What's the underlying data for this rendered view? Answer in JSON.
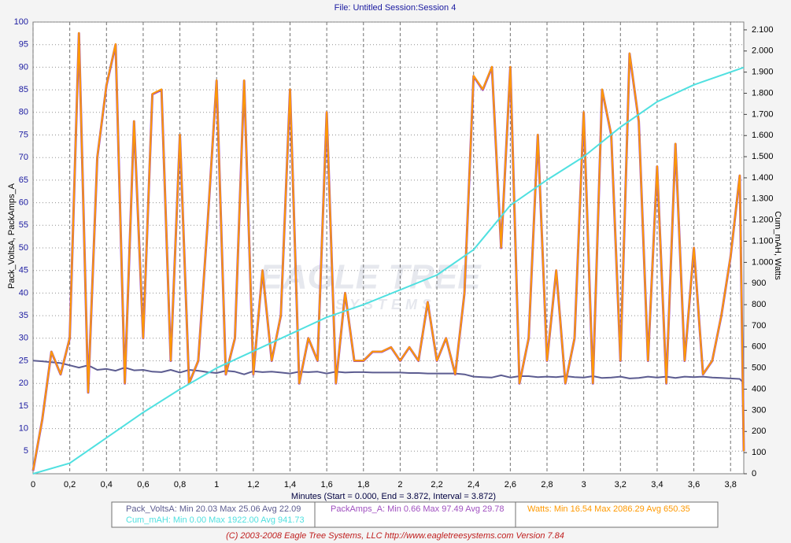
{
  "chart_data": {
    "type": "line",
    "title": "File: Untitled   Session:Session 4",
    "xlabel": "Minutes (Start = 0.000,  End = 3.872,  Interval =  3.872)",
    "ylabel": "Pack_VoltsA, PackAmps_A",
    "y2label": "Cum_mAH, Watts",
    "footer": "(C) 2003-2008 Eagle Tree Systems, LLC     http://www.eagletreesystems.com     Version 7.84",
    "watermark": [
      "EAGLE TREE",
      "SYSTEMS"
    ],
    "grid": true,
    "xlim": [
      0,
      3.872
    ],
    "ylim": [
      0,
      100
    ],
    "y2lim": [
      0,
      2137
    ],
    "xticks": [
      0,
      {
        "value": 0.2,
        "label": "0,2"
      },
      {
        "value": 0.4,
        "label": "0,4"
      },
      {
        "value": 0.6,
        "label": "0,6"
      },
      {
        "value": 0.8,
        "label": "0,8"
      },
      1,
      {
        "value": 1.2,
        "label": "1,2"
      },
      {
        "value": 1.4,
        "label": "1,4"
      },
      {
        "value": 1.6,
        "label": "1,6"
      },
      {
        "value": 1.8,
        "label": "1,8"
      },
      2,
      {
        "value": 2.2,
        "label": "2,2"
      },
      {
        "value": 2.4,
        "label": "2,4"
      },
      {
        "value": 2.6,
        "label": "2,6"
      },
      {
        "value": 2.8,
        "label": "2,8"
      },
      3,
      {
        "value": 3.2,
        "label": "3,2"
      },
      {
        "value": 3.4,
        "label": "3,4"
      },
      {
        "value": 3.6,
        "label": "3,6"
      },
      {
        "value": 3.8,
        "label": "3,8"
      }
    ],
    "yticks": [
      5,
      10,
      15,
      20,
      25,
      30,
      35,
      40,
      45,
      50,
      55,
      60,
      65,
      70,
      75,
      80,
      85,
      90,
      95,
      100
    ],
    "y2ticks": [
      0,
      100,
      200,
      300,
      400,
      500,
      600,
      700,
      800,
      900,
      {
        "value": 1000,
        "label": "1.000"
      },
      {
        "value": 1100,
        "label": "1.100"
      },
      {
        "value": 1200,
        "label": "1.200"
      },
      {
        "value": 1300,
        "label": "1.300"
      },
      {
        "value": 1400,
        "label": "1.400"
      },
      {
        "value": 1500,
        "label": "1.500"
      },
      {
        "value": 1600,
        "label": "1.600"
      },
      {
        "value": 1700,
        "label": "1.700"
      },
      {
        "value": 1800,
        "label": "1.800"
      },
      {
        "value": 1900,
        "label": "1.900"
      },
      {
        "value": 2000,
        "label": "2.000"
      },
      {
        "value": 2100,
        "label": "2.100"
      }
    ],
    "x": [
      0,
      0.05,
      0.1,
      0.15,
      0.2,
      0.25,
      0.3,
      0.35,
      0.4,
      0.45,
      0.5,
      0.55,
      0.6,
      0.65,
      0.7,
      0.75,
      0.8,
      0.85,
      0.9,
      0.95,
      1,
      1.05,
      1.1,
      1.15,
      1.2,
      1.25,
      1.3,
      1.35,
      1.4,
      1.45,
      1.5,
      1.55,
      1.6,
      1.65,
      1.7,
      1.75,
      1.8,
      1.85,
      1.9,
      1.95,
      2,
      2.05,
      2.1,
      2.15,
      2.2,
      2.25,
      2.3,
      2.35,
      2.4,
      2.45,
      2.5,
      2.55,
      2.6,
      2.65,
      2.7,
      2.75,
      2.8,
      2.85,
      2.9,
      2.95,
      3,
      3.05,
      3.1,
      3.15,
      3.2,
      3.25,
      3.3,
      3.35,
      3.4,
      3.45,
      3.5,
      3.55,
      3.6,
      3.65,
      3.7,
      3.75,
      3.8,
      3.85,
      3.872
    ],
    "series": [
      {
        "name": "Pack_VoltsA",
        "legend_label": "Pack_VoltsA:  Min 20.03   Max 25.06   Avg 22.09",
        "color": "#5c5c90",
        "width": 2,
        "values": [
          25.06,
          24.9,
          24.7,
          24.5,
          24.0,
          23.5,
          24.0,
          23.0,
          23.2,
          22.8,
          23.5,
          22.9,
          23.0,
          22.6,
          22.5,
          23.0,
          22.4,
          23.0,
          22.8,
          22.5,
          22.3,
          22.8,
          22.6,
          22.0,
          22.7,
          22.5,
          22.6,
          22.4,
          22.2,
          22.6,
          22.5,
          22.6,
          22.2,
          22.6,
          22.4,
          22.5,
          22.5,
          22.4,
          22.4,
          22.4,
          22.4,
          22.3,
          22.3,
          22.2,
          22.2,
          22.2,
          22.2,
          22.0,
          21.5,
          21.4,
          21.3,
          21.8,
          21.3,
          21.6,
          21.6,
          21.4,
          21.5,
          21.4,
          21.6,
          21.4,
          21.3,
          21.6,
          21.2,
          21.3,
          21.5,
          21.1,
          21.2,
          21.5,
          21.3,
          21.5,
          21.2,
          21.5,
          21.4,
          21.5,
          21.3,
          21.2,
          21.1,
          21.0,
          20.03
        ]
      },
      {
        "name": "PackAmps_A",
        "legend_label": "PackAmps_A:  Min 0.66   Max 97.49   Avg 29.78",
        "color": "#a050c0",
        "width": 3,
        "values": [
          0.66,
          12,
          27,
          22,
          30,
          97.49,
          18,
          70,
          86,
          95,
          20,
          78,
          30,
          84,
          85,
          25,
          75,
          20,
          25,
          55,
          87,
          22,
          30,
          87,
          22,
          45,
          25,
          35,
          85,
          20,
          30,
          25,
          80,
          20,
          40,
          25,
          25,
          27,
          27,
          28,
          25,
          28,
          25,
          38,
          25,
          30,
          22,
          40,
          88,
          85,
          90,
          50,
          90,
          20,
          30,
          75,
          25,
          45,
          20,
          30,
          80,
          20,
          85,
          75,
          25,
          93,
          78,
          25,
          68,
          20,
          73,
          25,
          50,
          22,
          25,
          35,
          48,
          66,
          5
        ]
      },
      {
        "name": "Watts",
        "legend_label": "Watts:  Min 16.54   Max 2086.29   Avg 650.35",
        "color": "#ff9900",
        "width": 2,
        "axis": "y2",
        "values": [
          17,
          257,
          578,
          471,
          642,
          2086,
          385,
          1498,
          1840,
          2033,
          428,
          1669,
          642,
          1798,
          1819,
          535,
          1605,
          428,
          535,
          1177,
          1862,
          471,
          642,
          1862,
          471,
          963,
          535,
          749,
          1819,
          428,
          642,
          535,
          1712,
          428,
          856,
          535,
          535,
          578,
          578,
          599,
          535,
          599,
          535,
          813,
          535,
          642,
          471,
          856,
          1883,
          1819,
          1926,
          1070,
          1926,
          428,
          642,
          1605,
          535,
          963,
          428,
          642,
          1712,
          428,
          1819,
          1605,
          535,
          1990,
          1669,
          535,
          1455,
          428,
          1562,
          535,
          1070,
          471,
          535,
          749,
          1027,
          1412,
          107
        ]
      },
      {
        "name": "Cum_mAH",
        "legend_label": "Cum_mAH:  Min 0.00   Max 1922.00   Avg 941.73",
        "color": "#50e0e0",
        "width": 2,
        "axis": "y2",
        "x": [
          0,
          0.2,
          0.4,
          0.6,
          0.8,
          1,
          1.2,
          1.4,
          1.6,
          1.8,
          2,
          2.2,
          2.4,
          2.6,
          2.8,
          3,
          3.2,
          3.4,
          3.6,
          3.872
        ],
        "values": [
          0,
          50,
          170,
          290,
          400,
          500,
          580,
          660,
          740,
          800,
          870,
          940,
          1060,
          1270,
          1390,
          1500,
          1640,
          1760,
          1840,
          1922
        ]
      }
    ]
  }
}
